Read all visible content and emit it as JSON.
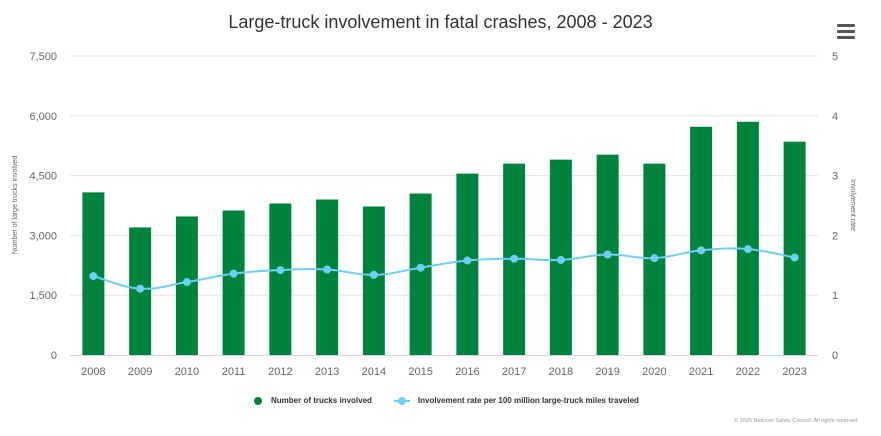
{
  "chart_data": {
    "type": "bar+line",
    "title": "Large-truck involvement in fatal crashes, 2008 - 2023",
    "categories": [
      "2008",
      "2009",
      "2010",
      "2011",
      "2012",
      "2013",
      "2014",
      "2015",
      "2016",
      "2017",
      "2018",
      "2019",
      "2020",
      "2021",
      "2022",
      "2023"
    ],
    "series": [
      {
        "name": "Number of trucks involved",
        "type": "bar",
        "axis": "left",
        "color": "#00843d",
        "values": [
          4080,
          3200,
          3475,
          3625,
          3800,
          3900,
          3725,
          4050,
          4550,
          4800,
          4900,
          5025,
          4800,
          5725,
          5850,
          5350
        ]
      },
      {
        "name": "Involvement rate per 100 million large-truck miles traveled",
        "type": "line",
        "axis": "right",
        "color": "#6dcff6",
        "values": [
          1.32,
          1.11,
          1.22,
          1.36,
          1.42,
          1.43,
          1.34,
          1.46,
          1.58,
          1.61,
          1.59,
          1.68,
          1.62,
          1.75,
          1.77,
          1.63
        ]
      }
    ],
    "ylabel": "Number of large trucks involved",
    "y2label": "Involvement rate",
    "ylim": [
      0,
      7500
    ],
    "y2lim": [
      0,
      5
    ],
    "yticks": [
      "0",
      "1,500",
      "3,000",
      "4,500",
      "6,000",
      "7,500"
    ],
    "y2ticks": [
      "0",
      "1",
      "2",
      "3",
      "4",
      "5"
    ],
    "grid": true,
    "legend": "bottom"
  },
  "credit": "© 2025 National Safety Council. All rights reserved.",
  "menu_icon": "hamburger-menu-icon"
}
